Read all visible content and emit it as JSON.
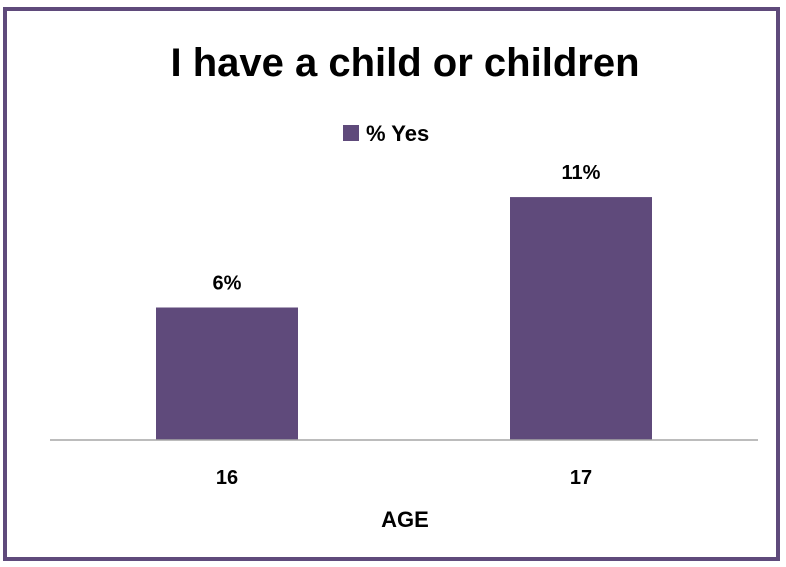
{
  "chart_data": {
    "type": "bar",
    "title": "I have a child or children",
    "categories": [
      "16",
      "17"
    ],
    "series": [
      {
        "name": "% Yes",
        "values": [
          6,
          11
        ],
        "labels": [
          "6%",
          "11%"
        ]
      }
    ],
    "xlabel": "AGE",
    "ylabel": "",
    "ylim": [
      0,
      12
    ],
    "grid": false,
    "legend_position": "top",
    "colors": {
      "bar": "#5f4a7b",
      "frame": "#5f4a7b",
      "axis": "#a6a6a6",
      "text": "#000000"
    }
  }
}
